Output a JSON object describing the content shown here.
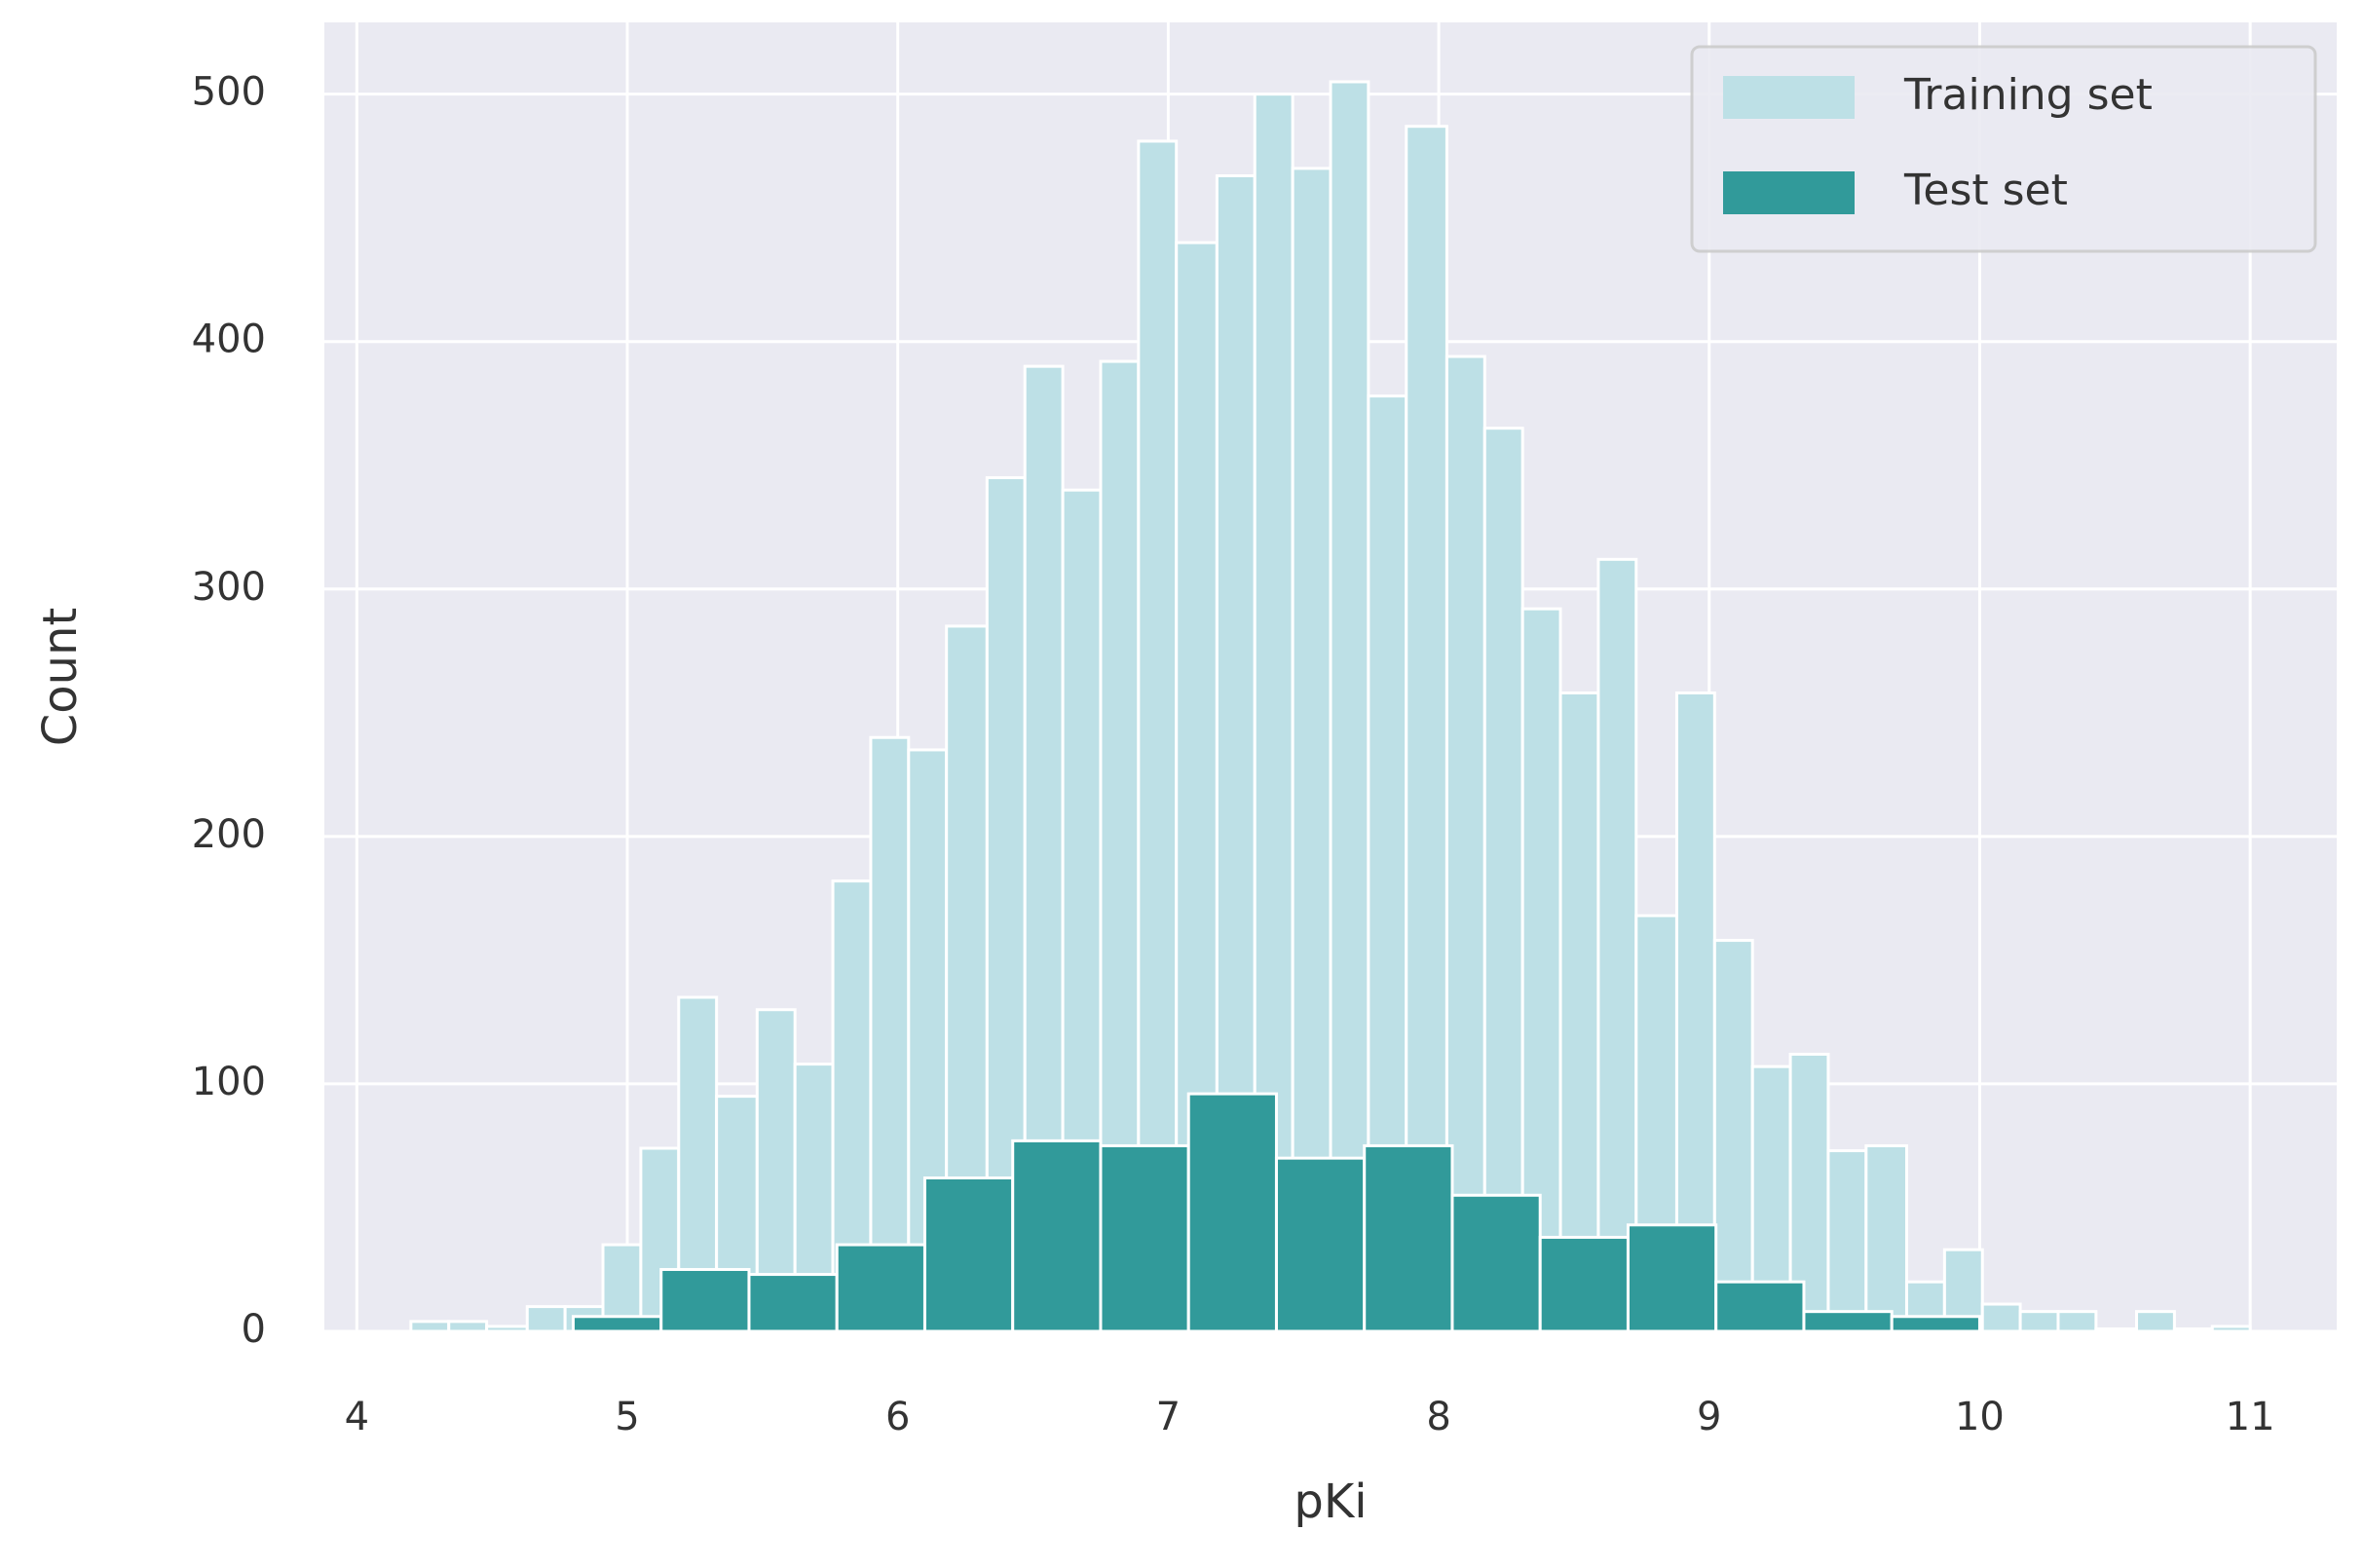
{
  "chart_data": {
    "type": "histogram",
    "x_label": "pKi",
    "y_label": "Count",
    "xlim": [
      3.88,
      11.32
    ],
    "ylim": [
      0,
      529
    ],
    "xticks": [
      4,
      5,
      6,
      7,
      8,
      9,
      10,
      11
    ],
    "yticks": [
      0,
      100,
      200,
      300,
      400,
      500
    ],
    "grid": true,
    "legend": "upper right",
    "series": [
      {
        "name": "Training set",
        "color": "#bde0e6",
        "bins": [
          4.2,
          4.34,
          4.48,
          4.63,
          4.77,
          4.91,
          5.05,
          5.19,
          5.33,
          5.48,
          5.62,
          5.76,
          5.9,
          6.04,
          6.18,
          6.33,
          6.47,
          6.61,
          6.75,
          6.89,
          7.03,
          7.18,
          7.32,
          7.46,
          7.6,
          7.74,
          7.88,
          8.03,
          8.17,
          8.31,
          8.45,
          8.59,
          8.73,
          8.88,
          9.02,
          9.16,
          9.3,
          9.44,
          9.58,
          9.73,
          9.87,
          10.01,
          10.15,
          10.29,
          10.43,
          10.58,
          10.72,
          10.86,
          11.0
        ],
        "values": [
          4,
          4,
          2,
          10,
          10,
          35,
          74,
          135,
          95,
          130,
          108,
          182,
          240,
          235,
          285,
          345,
          390,
          340,
          392,
          481,
          440,
          467,
          500,
          470,
          505,
          378,
          487,
          394,
          365,
          292,
          258,
          312,
          168,
          258,
          158,
          107,
          112,
          73,
          75,
          20,
          33,
          11,
          8,
          8,
          1,
          8,
          1,
          2
        ]
      },
      {
        "name": "Test set",
        "color": "#319a9a",
        "bins": [
          4.8,
          5.125,
          5.45,
          5.775,
          6.1,
          6.425,
          6.75,
          7.075,
          7.4,
          7.725,
          8.05,
          8.375,
          8.7,
          9.025,
          9.35,
          9.675,
          10.0
        ],
        "values": [
          6,
          25,
          23,
          35,
          62,
          77,
          75,
          96,
          70,
          75,
          55,
          38,
          43,
          20,
          8,
          6
        ]
      }
    ]
  }
}
